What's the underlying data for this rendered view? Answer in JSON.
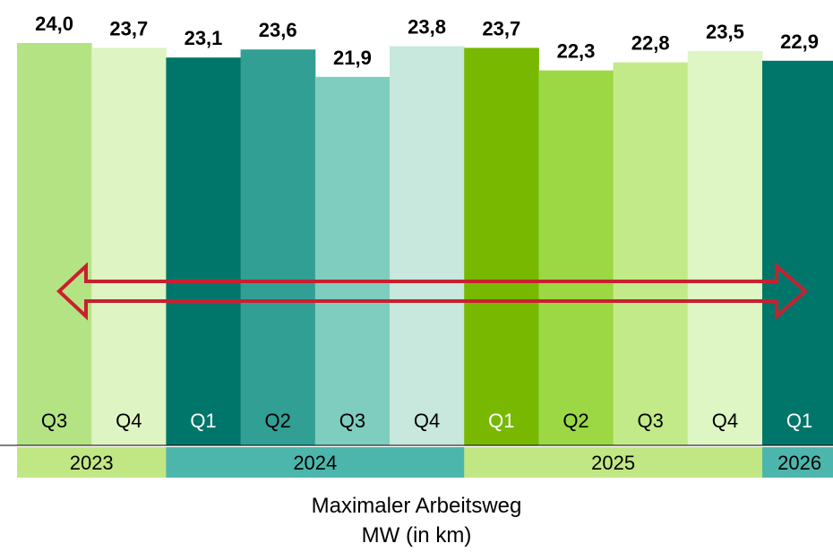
{
  "chart_data": {
    "type": "bar",
    "categories": [
      "Q3",
      "Q4",
      "Q1",
      "Q2",
      "Q3",
      "Q4",
      "Q1",
      "Q2",
      "Q3",
      "Q4",
      "Q1"
    ],
    "values": [
      24.0,
      23.7,
      23.1,
      23.6,
      21.9,
      23.8,
      23.7,
      22.3,
      22.8,
      23.5,
      22.9
    ],
    "value_labels": [
      "24,0",
      "23,7",
      "23,1",
      "23,6",
      "21,9",
      "23,8",
      "23,7",
      "22,3",
      "22,8",
      "23,5",
      "22,9"
    ],
    "years": [
      {
        "label": "2023",
        "bars": 2,
        "color": "#c1e784"
      },
      {
        "label": "2024",
        "bars": 4,
        "color": "#4db6ac"
      },
      {
        "label": "2025",
        "bars": 4,
        "color": "#c1e784"
      },
      {
        "label": "2026",
        "bars": 1,
        "color": "#4db6ac"
      }
    ],
    "bar_colors": [
      "#b4e384",
      "#def4c3",
      "#00766b",
      "#329f94",
      "#7fcdbf",
      "#c8e7dd",
      "#78b800",
      "#9bd844",
      "#c3ea88",
      "#def5c4",
      "#00766b"
    ],
    "label_colors": [
      "#000000",
      "#000000",
      "#ffffff",
      "#000000",
      "#000000",
      "#000000",
      "#ffffff",
      "#000000",
      "#000000",
      "#000000",
      "#ffffff"
    ],
    "ylim": [
      0,
      24.0
    ],
    "annotation": {
      "type": "double-arrow",
      "color": "#c8202f"
    },
    "caption_lines": [
      "Maximaler Arbeitsweg",
      "MW (in km)"
    ]
  }
}
